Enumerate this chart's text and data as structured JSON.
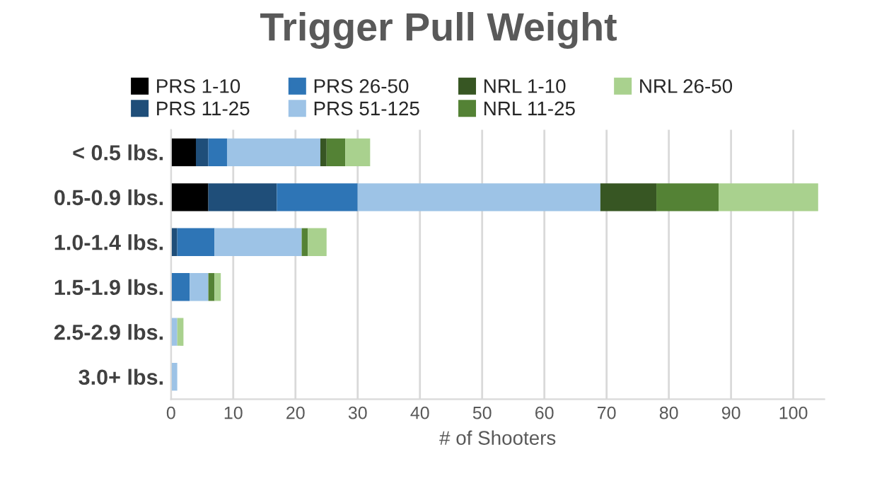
{
  "chart_data": {
    "type": "bar",
    "orientation": "horizontal",
    "stacked": true,
    "title": "Trigger Pull Weight",
    "xlabel": "# of Shooters",
    "categories": [
      "< 0.5 lbs.",
      "0.5-0.9 lbs.",
      "1.0-1.4 lbs.",
      "1.5-1.9 lbs.",
      "2.5-2.9 lbs.",
      "3.0+ lbs."
    ],
    "series": [
      {
        "name": "PRS 1-10",
        "color": "#000000",
        "values": [
          4,
          6,
          0,
          0,
          0,
          0
        ]
      },
      {
        "name": "PRS 11-25",
        "color": "#1f4e79",
        "values": [
          2,
          11,
          1,
          0,
          0,
          0
        ]
      },
      {
        "name": "PRS 26-50",
        "color": "#2e75b6",
        "values": [
          3,
          13,
          6,
          3,
          0,
          0
        ]
      },
      {
        "name": "PRS 51-125",
        "color": "#9dc3e6",
        "values": [
          15,
          39,
          14,
          3,
          1,
          1
        ]
      },
      {
        "name": "NRL 1-10",
        "color": "#375623",
        "values": [
          1,
          9,
          0,
          0,
          0,
          0
        ]
      },
      {
        "name": "NRL 11-25",
        "color": "#548235",
        "values": [
          3,
          10,
          1,
          1,
          0,
          0
        ]
      },
      {
        "name": "NRL 26-50",
        "color": "#a9d18e",
        "values": [
          4,
          16,
          3,
          1,
          1,
          0
        ]
      }
    ],
    "xlim": [
      0,
      105
    ],
    "xticks": [
      0,
      10,
      20,
      30,
      40,
      50,
      60,
      70,
      80,
      90,
      100
    ],
    "grid": "x",
    "legend": "top"
  }
}
